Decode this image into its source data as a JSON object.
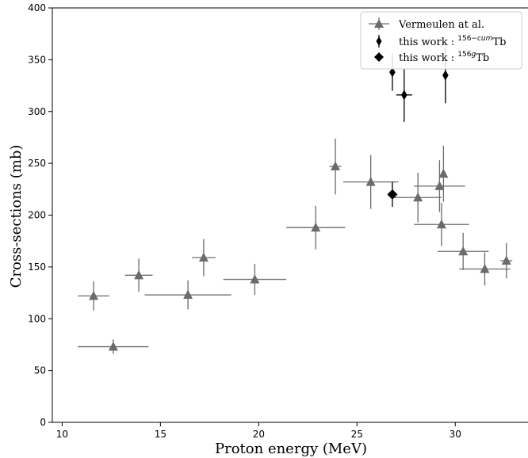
{
  "chart_data": {
    "type": "scatter",
    "xlabel": "Proton energy (MeV)",
    "ylabel": "Cross-sections (mb)",
    "xlim": [
      9.5,
      33.7
    ],
    "ylim": [
      0,
      400
    ],
    "xticks": [
      10,
      15,
      20,
      25,
      30
    ],
    "yticks": [
      0,
      50,
      100,
      150,
      200,
      250,
      300,
      350,
      400
    ],
    "grid": false,
    "legend_position": "top-right",
    "series": [
      {
        "name": "Vermeulen at al.",
        "marker": "triangle",
        "color": "#6b6b6b",
        "points": [
          {
            "x": 11.6,
            "y": 122,
            "xerr": 0.8,
            "yerr": 14
          },
          {
            "x": 12.6,
            "y": 73,
            "xerr": 1.8,
            "yerr": 7
          },
          {
            "x": 13.9,
            "y": 142,
            "xerr": 0.7,
            "yerr": 16
          },
          {
            "x": 16.4,
            "y": 123,
            "xerr": 2.2,
            "yerr": 14
          },
          {
            "x": 17.2,
            "y": 159,
            "xerr": 0.6,
            "yerr": 18
          },
          {
            "x": 19.8,
            "y": 138,
            "xerr": 1.6,
            "yerr": 15
          },
          {
            "x": 22.9,
            "y": 188,
            "xerr": 1.5,
            "yerr": 21
          },
          {
            "x": 23.9,
            "y": 247,
            "xerr": 0.3,
            "yerr": 27
          },
          {
            "x": 25.7,
            "y": 232,
            "xerr": 1.4,
            "yerr": 26
          },
          {
            "x": 28.1,
            "y": 217,
            "xerr": 1.2,
            "yerr": 24
          },
          {
            "x": 29.2,
            "y": 228,
            "xerr": 1.3,
            "yerr": 25
          },
          {
            "x": 29.3,
            "y": 191,
            "xerr": 1.4,
            "yerr": 21
          },
          {
            "x": 29.4,
            "y": 240,
            "xerr": 0.1,
            "yerr": 27
          },
          {
            "x": 30.4,
            "y": 165,
            "xerr": 1.3,
            "yerr": 18
          },
          {
            "x": 31.5,
            "y": 148,
            "xerr": 1.3,
            "yerr": 16
          },
          {
            "x": 32.6,
            "y": 156,
            "xerr": 0.3,
            "yerr": 17
          }
        ]
      },
      {
        "name": "this work : 156−cumTb",
        "label_mass": "156",
        "label_state": "−cum",
        "label_element": "Tb",
        "marker": "thin-diamond",
        "color": "#000000",
        "points": [
          {
            "x": 26.8,
            "y": 338,
            "xerr": 0.0,
            "yerr": 18
          },
          {
            "x": 27.4,
            "y": 316,
            "xerr": 0.4,
            "yerr": 26
          },
          {
            "x": 29.5,
            "y": 335,
            "xerr": 0.0,
            "yerr": 27
          }
        ]
      },
      {
        "name": "this work : 156gTb",
        "label_mass": "156",
        "label_state": "g",
        "label_element": "Tb",
        "marker": "diamond",
        "color": "#000000",
        "points": [
          {
            "x": 26.8,
            "y": 220,
            "xerr": 0.0,
            "yerr": 12
          }
        ]
      }
    ]
  }
}
